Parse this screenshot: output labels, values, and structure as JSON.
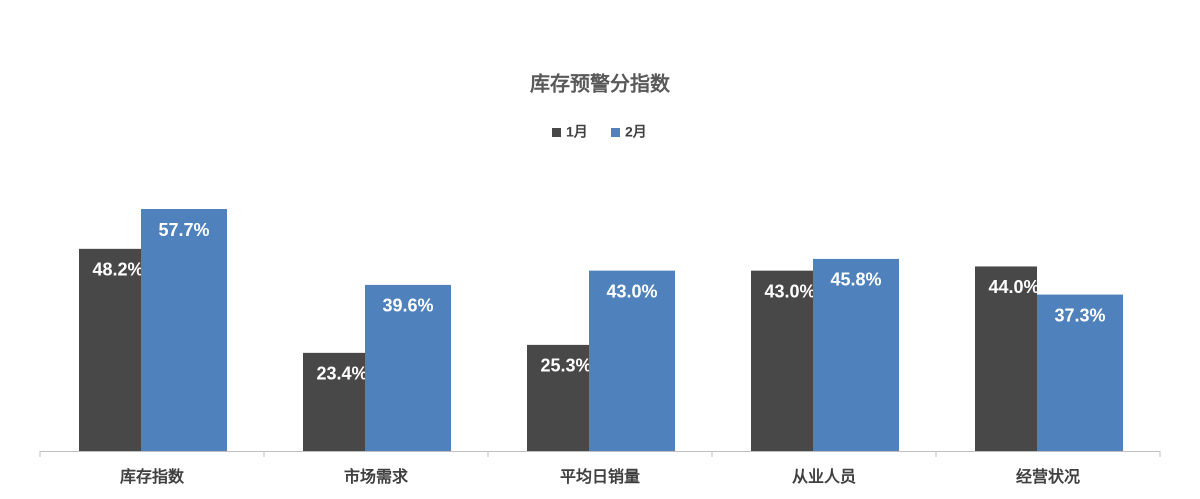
{
  "chart_data": {
    "type": "bar",
    "title": "库存预警分指数",
    "categories": [
      "库存指数",
      "市场需求",
      "平均日销量",
      "从业人员",
      "经营状况"
    ],
    "series": [
      {
        "name": "1月",
        "color": "#484848",
        "values": [
          48.2,
          23.4,
          25.3,
          43.0,
          44.0
        ],
        "value_labels": [
          "48.2%",
          "23.4%",
          "25.3%",
          "43.0%",
          "44.0%"
        ]
      },
      {
        "name": "2月",
        "color": "#4f81bd",
        "values": [
          57.7,
          39.6,
          43.0,
          45.8,
          37.3
        ],
        "value_labels": [
          "57.7%",
          "39.6%",
          "43.0%",
          "45.8%",
          "37.3%"
        ]
      }
    ],
    "legend": "top"
  }
}
